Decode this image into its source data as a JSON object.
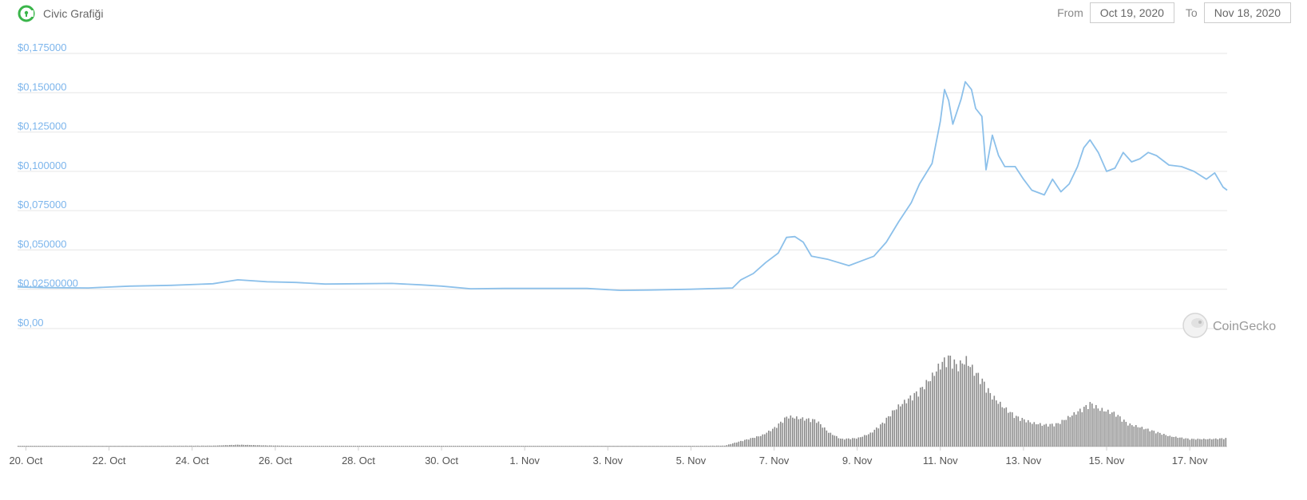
{
  "header": {
    "title": "Civic Grafiği",
    "logo_icon": "civic-logo-icon"
  },
  "range": {
    "from_label": "From",
    "from_value": "Oct 19, 2020",
    "to_label": "To",
    "to_value": "Nov 18, 2020"
  },
  "watermark": {
    "text": "CoinGecko",
    "icon": "coingecko-gecko-icon"
  },
  "colors": {
    "line": "#8cc0ea",
    "grid": "#e6e6e6",
    "ytick": "#7cb5ec",
    "volume": "#8a8a8a",
    "logo": "#3ab54a"
  },
  "chart_data": {
    "type": "line",
    "ylim": [
      0,
      0.175
    ],
    "yticks": [
      "$0,175000",
      "$0,150000",
      "$0,125000",
      "$0,100000",
      "$0,075000",
      "$0,050000",
      "$0,02500000",
      "$0,00"
    ],
    "ytick_values": [
      0.175,
      0.15,
      0.125,
      0.1,
      0.075,
      0.05,
      0.025,
      0
    ],
    "xlim": [
      19.8,
      48.9
    ],
    "xticks": [
      "20. Oct",
      "22. Oct",
      "24. Oct",
      "26. Oct",
      "28. Oct",
      "30. Oct",
      "1. Nov",
      "3. Nov",
      "5. Nov",
      "7. Nov",
      "9. Nov",
      "11. Nov",
      "13. Nov",
      "15. Nov",
      "17. Nov"
    ],
    "xtick_days": [
      20,
      22,
      24,
      26,
      28,
      30,
      32,
      34,
      36,
      38,
      40,
      42,
      44,
      46,
      48
    ],
    "grid": true,
    "legend": "none",
    "series": [
      {
        "points": [
          [
            19.8,
            0.0265
          ],
          [
            20.5,
            0.026
          ],
          [
            21.5,
            0.0258
          ],
          [
            22.5,
            0.027
          ],
          [
            23.5,
            0.0275
          ],
          [
            24.5,
            0.0285
          ],
          [
            25.1,
            0.031
          ],
          [
            25.8,
            0.0298
          ],
          [
            26.5,
            0.0293
          ],
          [
            27.2,
            0.0283
          ],
          [
            28,
            0.0285
          ],
          [
            28.8,
            0.0287
          ],
          [
            29.5,
            0.0278
          ],
          [
            30,
            0.027
          ],
          [
            30.7,
            0.0253
          ],
          [
            31.5,
            0.0255
          ],
          [
            32.5,
            0.0255
          ],
          [
            33.5,
            0.0255
          ],
          [
            34.3,
            0.0243
          ],
          [
            35,
            0.0245
          ],
          [
            36,
            0.025
          ],
          [
            37,
            0.0258
          ],
          [
            37.2,
            0.031
          ],
          [
            37.5,
            0.035
          ],
          [
            37.8,
            0.042
          ],
          [
            38.1,
            0.048
          ],
          [
            38.3,
            0.058
          ],
          [
            38.5,
            0.0585
          ],
          [
            38.7,
            0.055
          ],
          [
            38.9,
            0.046
          ],
          [
            39.3,
            0.044
          ],
          [
            39.8,
            0.04
          ],
          [
            40.1,
            0.043
          ],
          [
            40.4,
            0.046
          ],
          [
            40.7,
            0.055
          ],
          [
            41,
            0.068
          ],
          [
            41.3,
            0.08
          ],
          [
            41.5,
            0.092
          ],
          [
            41.8,
            0.105
          ],
          [
            42,
            0.132
          ],
          [
            42.1,
            0.152
          ],
          [
            42.2,
            0.145
          ],
          [
            42.3,
            0.13
          ],
          [
            42.5,
            0.146
          ],
          [
            42.6,
            0.157
          ],
          [
            42.75,
            0.152
          ],
          [
            42.85,
            0.14
          ],
          [
            43,
            0.135
          ],
          [
            43.1,
            0.101
          ],
          [
            43.25,
            0.123
          ],
          [
            43.4,
            0.11
          ],
          [
            43.55,
            0.103
          ],
          [
            43.8,
            0.103
          ],
          [
            44,
            0.095
          ],
          [
            44.2,
            0.088
          ],
          [
            44.5,
            0.085
          ],
          [
            44.7,
            0.095
          ],
          [
            44.9,
            0.087
          ],
          [
            45.1,
            0.092
          ],
          [
            45.3,
            0.103
          ],
          [
            45.45,
            0.115
          ],
          [
            45.6,
            0.12
          ],
          [
            45.8,
            0.112
          ],
          [
            46,
            0.1
          ],
          [
            46.2,
            0.102
          ],
          [
            46.4,
            0.112
          ],
          [
            46.6,
            0.106
          ],
          [
            46.8,
            0.108
          ],
          [
            47,
            0.112
          ],
          [
            47.2,
            0.11
          ],
          [
            47.5,
            0.104
          ],
          [
            47.8,
            0.103
          ],
          [
            48.1,
            0.1
          ],
          [
            48.4,
            0.095
          ],
          [
            48.6,
            0.099
          ],
          [
            48.8,
            0.09
          ],
          [
            48.9,
            0.088
          ]
        ]
      }
    ],
    "volume": {
      "points": [
        [
          19.8,
          0.5
        ],
        [
          24.5,
          1
        ],
        [
          25.1,
          2
        ],
        [
          25.8,
          1.2
        ],
        [
          27,
          0.5
        ],
        [
          32,
          0.3
        ],
        [
          35,
          0.5
        ],
        [
          36,
          0.8
        ],
        [
          36.8,
          1
        ],
        [
          37.2,
          6
        ],
        [
          37.7,
          12
        ],
        [
          38,
          20
        ],
        [
          38.3,
          32
        ],
        [
          38.6,
          30
        ],
        [
          39,
          28
        ],
        [
          39.3,
          15
        ],
        [
          39.6,
          8
        ],
        [
          40,
          9
        ],
        [
          40.3,
          14
        ],
        [
          40.6,
          25
        ],
        [
          40.9,
          40
        ],
        [
          41.2,
          50
        ],
        [
          41.5,
          60
        ],
        [
          41.8,
          75
        ],
        [
          42,
          88
        ],
        [
          42.2,
          95
        ],
        [
          42.4,
          85
        ],
        [
          42.6,
          92
        ],
        [
          42.8,
          80
        ],
        [
          43,
          70
        ],
        [
          43.2,
          55
        ],
        [
          43.5,
          42
        ],
        [
          43.8,
          32
        ],
        [
          44.2,
          25
        ],
        [
          44.5,
          23
        ],
        [
          44.8,
          24
        ],
        [
          45.1,
          32
        ],
        [
          45.4,
          40
        ],
        [
          45.6,
          46
        ],
        [
          45.8,
          40
        ],
        [
          46.2,
          35
        ],
        [
          46.5,
          24
        ],
        [
          47,
          18
        ],
        [
          47.5,
          11
        ],
        [
          48,
          8
        ],
        [
          48.5,
          8
        ],
        [
          48.9,
          9
        ]
      ]
    }
  }
}
